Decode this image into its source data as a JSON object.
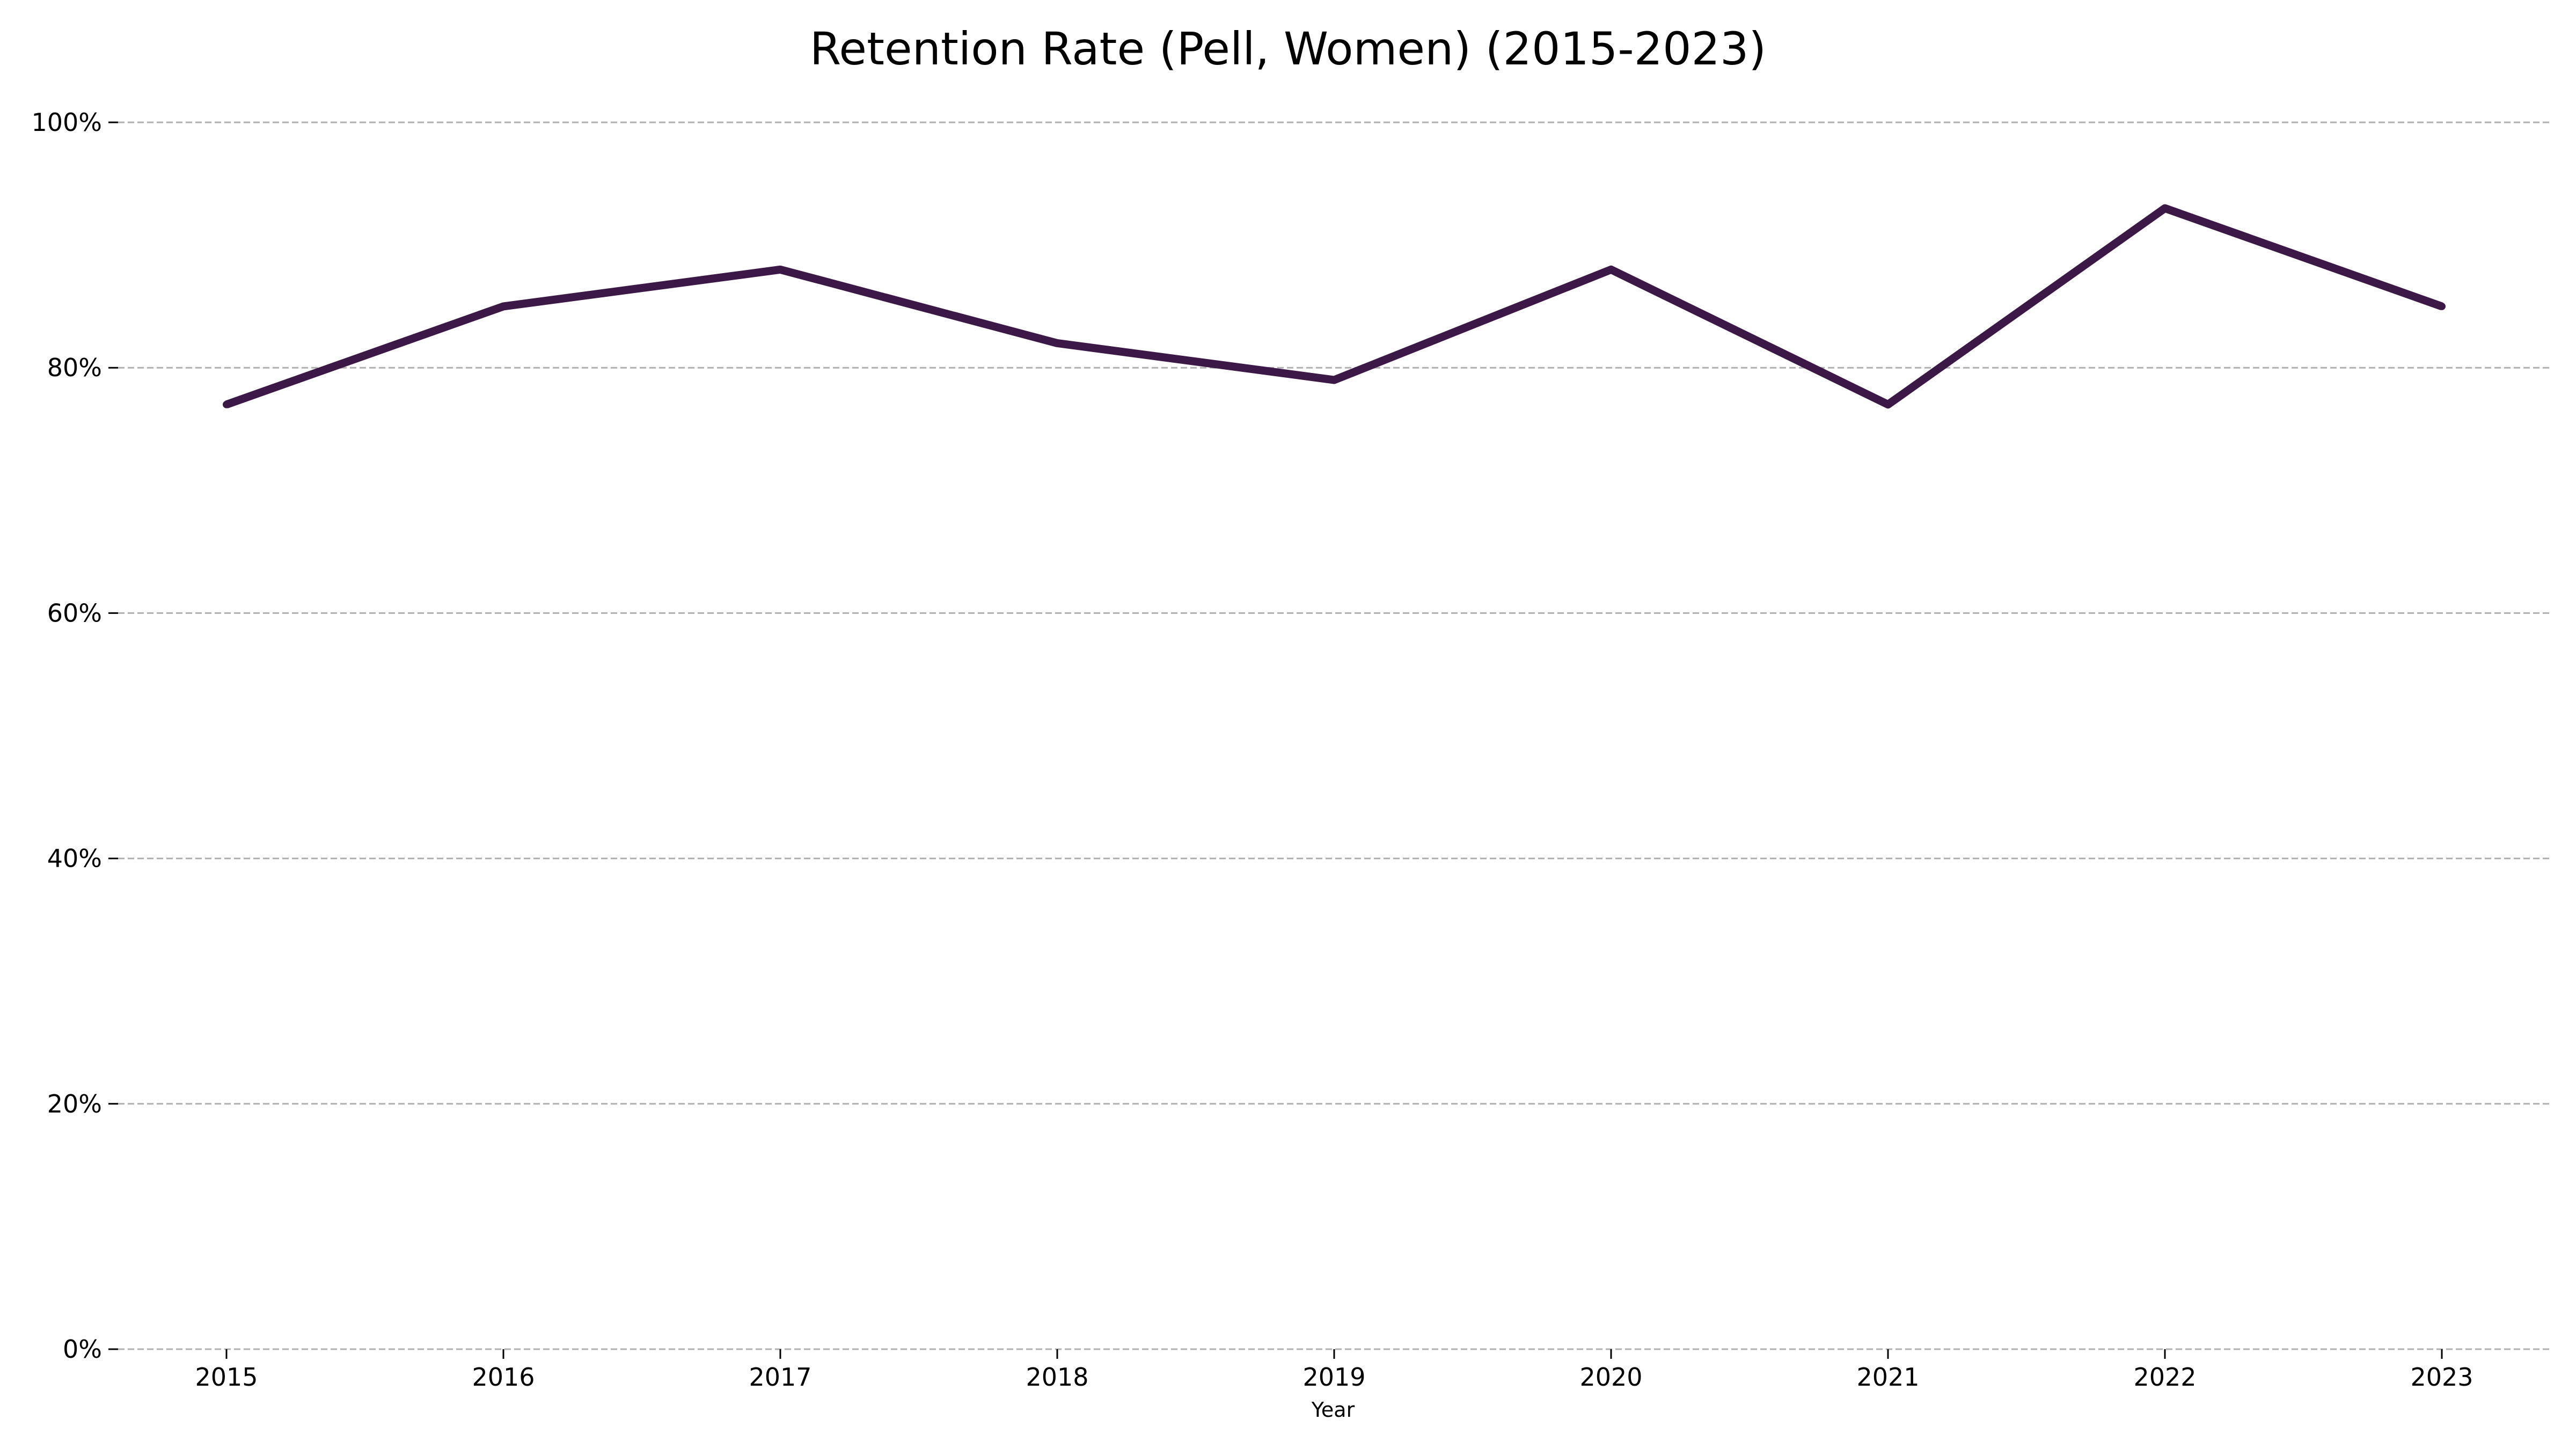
{
  "chart_data": {
    "type": "line",
    "title": "Retention Rate (Pell, Women) (2015-2023)",
    "xlabel": "Year",
    "ylabel": "",
    "categories": [
      "2015",
      "2016",
      "2017",
      "2018",
      "2019",
      "2020",
      "2021",
      "2022",
      "2023"
    ],
    "series": [
      {
        "values": [
          77,
          85,
          88,
          82,
          79,
          88,
          77,
          93,
          85
        ],
        "color": "#3b1845"
      }
    ],
    "ylim": [
      0,
      100
    ],
    "yticks": [
      0,
      20,
      40,
      60,
      80,
      100
    ],
    "ytick_labels": [
      "0%",
      "20%",
      "40%",
      "60%",
      "80%",
      "100%"
    ],
    "grid": "horizontal dashed",
    "legend": "none"
  }
}
